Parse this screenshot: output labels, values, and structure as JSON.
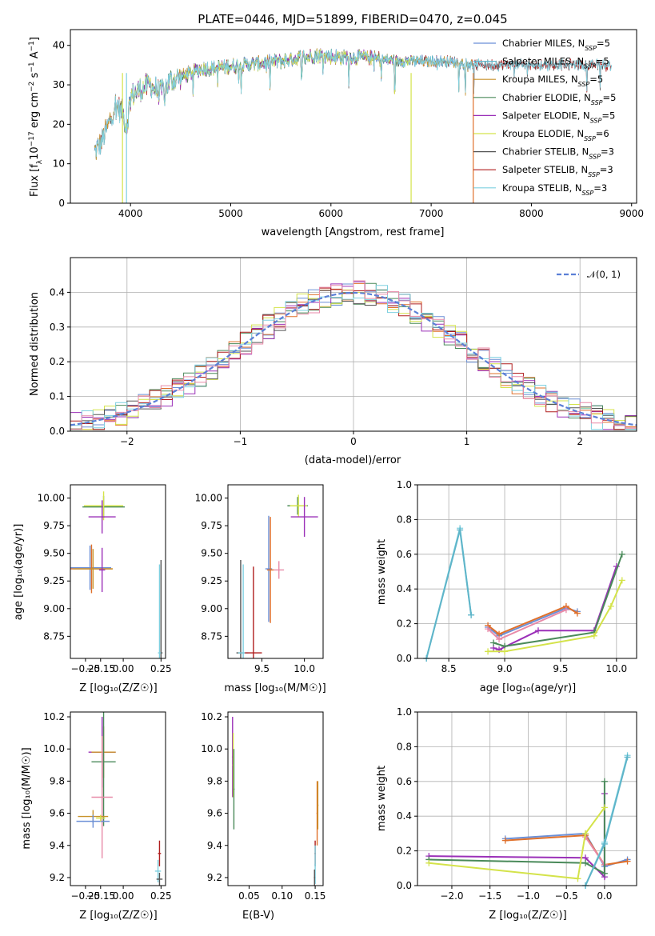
{
  "figure": {
    "title": "PLATE=0446, MJD=51899, FIBERID=0470, z=0.045"
  },
  "chart_data": [
    {
      "id": "spectrum",
      "type": "line",
      "xlabel": "wavelength [Angstrom, rest frame]",
      "ylabel_parts": [
        "Flux [f",
        "λ",
        "10",
        "−17",
        " erg cm",
        "−2",
        " s",
        "−1",
        " A",
        "−1",
        "]"
      ],
      "xlim": [
        3400,
        9050
      ],
      "ylim": [
        0,
        44
      ],
      "xticks": [
        4000,
        5000,
        6000,
        7000,
        8000,
        9000
      ],
      "yticks": [
        0,
        10,
        20,
        30,
        40
      ],
      "grid": false,
      "legend_position": "upper-right",
      "continuum": {
        "x": [
          3640,
          3700,
          3780,
          3850,
          3920,
          3960,
          4000,
          4100,
          4200,
          4300,
          4400,
          4500,
          4700,
          4900,
          5100,
          5300,
          5500,
          5700,
          5900,
          6100,
          6300,
          6500,
          6700,
          6900,
          7100,
          7300,
          7420
        ],
        "y": [
          13,
          15,
          20,
          25,
          23,
          19,
          27,
          29,
          30,
          28,
          31,
          32,
          34,
          34.5,
          35,
          35.5,
          36,
          37,
          37.5,
          37,
          37,
          36.5,
          36,
          36,
          36,
          35.5,
          35
        ]
      },
      "series": [
        {
          "name": "Chabrier MILES",
          "nssp": "5",
          "color": "#6b8fd6",
          "xmin": 3640,
          "xmax": 7420
        },
        {
          "name": "Salpeter MILES",
          "nssp": "5",
          "color": "#5fb5c9",
          "xmin": 3640,
          "xmax": 7420
        },
        {
          "name": "Kroupa MILES",
          "nssp": "5",
          "color": "#c8922a",
          "xmin": 3640,
          "xmax": 7420
        },
        {
          "name": "Chabrier ELODIE",
          "nssp": "5",
          "color": "#4a8a5a",
          "xmin": 3900,
          "xmax": 6800
        },
        {
          "name": "Salpeter ELODIE",
          "nssp": "5",
          "color": "#9b30b8",
          "xmin": 3900,
          "xmax": 6800
        },
        {
          "name": "Kroupa ELODIE",
          "nssp": "6",
          "color": "#d4e34a",
          "xmin": 3900,
          "xmax": 6800
        },
        {
          "name": "Chabrier STELIB",
          "nssp": "3",
          "color": "#555555",
          "xmin": 3640,
          "xmax": 8800
        },
        {
          "name": "Salpeter STELIB",
          "nssp": "3",
          "color": "#b01e1e",
          "xmin": 3640,
          "xmax": 8800
        },
        {
          "name": "Kroupa STELIB",
          "nssp": "3",
          "color": "#7fd0e0",
          "xmin": 3640,
          "xmax": 8800
        }
      ]
    },
    {
      "id": "residuals",
      "type": "line",
      "xlabel": "(data-model)/error",
      "ylabel": "Normed distribution",
      "xlim": [
        -2.5,
        2.5
      ],
      "ylim": [
        0,
        0.5
      ],
      "xticks": [
        -2,
        -1,
        0,
        1,
        2
      ],
      "xtick_labels": [
        "−2",
        "−1",
        "0",
        "1",
        "2"
      ],
      "yticks": [
        0,
        0.1,
        0.2,
        0.3,
        0.4
      ],
      "ytick_labels": [
        "0.0",
        "0.1",
        "0.2",
        "0.3",
        "0.4"
      ],
      "grid": true,
      "legend_position": "upper-right",
      "gaussian_label": "𝒩(0, 1)",
      "gaussian_color": "#5b7fd6",
      "bin_width": 0.1,
      "colors": [
        "#6b8fd6",
        "#e0702a",
        "#4a8a5a",
        "#9b30b8",
        "#d4e34a",
        "#555555",
        "#b01e1e",
        "#7fd0e0",
        "#e88aa8"
      ]
    },
    {
      "id": "age_vs_Z",
      "type": "scatter",
      "xlabel": "Z [log₁₀(Z/Z☉)]",
      "ylabel": "age  [log₁₀(age/yr)]",
      "xlim": [
        -0.35,
        0.28
      ],
      "ylim": [
        8.55,
        10.12
      ],
      "xticks": [
        -0.25,
        -0.15,
        0.0,
        0.25
      ],
      "xtick_labels": [
        "−0.25",
        "−0.15",
        "0.00",
        "0.25"
      ],
      "yticks": [
        8.75,
        9.0,
        9.25,
        9.5,
        9.75,
        10.0
      ],
      "ytick_labels": [
        "8.75",
        "9.00",
        "9.25",
        "9.50",
        "9.75",
        "10.00"
      ],
      "grid": false,
      "points": [
        {
          "x": -0.13,
          "y": 9.92,
          "xerr": 0.14,
          "yerr": 0.1,
          "color": "#4a8a5a"
        },
        {
          "x": -0.13,
          "y": 9.93,
          "xerr": 0.13,
          "yerr": 0.13,
          "color": "#d4e34a"
        },
        {
          "x": -0.14,
          "y": 9.83,
          "xerr": 0.09,
          "yerr": 0.15,
          "color": "#9b30b8"
        },
        {
          "x": -0.22,
          "y": 9.37,
          "xerr": 0.14,
          "yerr": 0.2,
          "color": "#6b8fd6"
        },
        {
          "x": -0.21,
          "y": 9.36,
          "xerr": 0.14,
          "yerr": 0.22,
          "color": "#e0702a"
        },
        {
          "x": -0.2,
          "y": 9.36,
          "xerr": 0.13,
          "yerr": 0.18,
          "color": "#c8922a"
        },
        {
          "x": -0.14,
          "y": 9.35,
          "xerr": 0.02,
          "yerr": 0.2,
          "color": "#9b30b8"
        },
        {
          "x": 0.25,
          "y": 8.6,
          "xerr": 0.01,
          "yerr": 0.84,
          "color": "#555555"
        },
        {
          "x": 0.24,
          "y": 8.6,
          "xerr": 0.01,
          "yerr": 0.8,
          "color": "#7fd0e0"
        }
      ]
    },
    {
      "id": "age_vs_mass",
      "type": "scatter",
      "xlabel": "mass [log₁₀(M/M☉)]",
      "xlim": [
        9.1,
        10.22
      ],
      "ylim": [
        8.55,
        10.12
      ],
      "xticks": [
        9.5,
        10.0
      ],
      "xtick_labels": [
        "9.5",
        "10.0"
      ],
      "yticks": [
        8.75,
        9.0,
        9.25,
        9.5,
        9.75,
        10.0
      ],
      "ytick_labels": [
        "8.75",
        "9.00",
        "9.25",
        "9.50",
        "9.75",
        "10.00"
      ],
      "grid": false,
      "points": [
        {
          "x": 9.92,
          "y": 9.93,
          "xerr": 0.12,
          "yerr": 0.08,
          "color": "#4a8a5a"
        },
        {
          "x": 9.93,
          "y": 9.93,
          "xerr": 0.1,
          "yerr": 0.1,
          "color": "#d4e34a"
        },
        {
          "x": 10.0,
          "y": 9.83,
          "xerr": 0.16,
          "yerr": 0.18,
          "color": "#9b30b8"
        },
        {
          "x": 9.58,
          "y": 9.36,
          "xerr": 0.04,
          "yerr": 0.48,
          "color": "#6b8fd6"
        },
        {
          "x": 9.6,
          "y": 9.35,
          "xerr": 0.04,
          "yerr": 0.48,
          "color": "#e0702a"
        },
        {
          "x": 9.7,
          "y": 9.35,
          "xerr": 0.06,
          "yerr": 0.08,
          "color": "#e88aa8"
        },
        {
          "x": 9.25,
          "y": 8.6,
          "xerr": 0.05,
          "yerr": 0.84,
          "color": "#555555"
        },
        {
          "x": 9.28,
          "y": 8.6,
          "xerr": 0.06,
          "yerr": 0.8,
          "color": "#7fd0e0"
        },
        {
          "x": 9.4,
          "y": 8.6,
          "xerr": 0.1,
          "yerr": 0.78,
          "color": "#b01e1e"
        }
      ]
    },
    {
      "id": "weight_vs_age",
      "type": "line",
      "xlabel": "age  [log₁₀(age/yr)]",
      "ylabel": "mass weight",
      "xlim": [
        8.22,
        10.18
      ],
      "ylim": [
        0,
        1
      ],
      "xticks": [
        8.5,
        9.0,
        9.5,
        10.0
      ],
      "xtick_labels": [
        "8.5",
        "9.0",
        "9.5",
        "10.0"
      ],
      "yticks": [
        0,
        0.2,
        0.4,
        0.6,
        0.8,
        1.0
      ],
      "ytick_labels": [
        "0.0",
        "0.2",
        "0.4",
        "0.6",
        "0.8",
        "1.0"
      ],
      "grid": true,
      "series": [
        {
          "color": "#7fd0e0",
          "x": [
            8.3,
            8.6,
            8.7
          ],
          "y": [
            0.0,
            0.75,
            0.25
          ]
        },
        {
          "color": "#5fb5c9",
          "x": [
            8.3,
            8.6,
            8.7
          ],
          "y": [
            0.0,
            0.74,
            0.25
          ]
        },
        {
          "color": "#6b8fd6",
          "x": [
            8.85,
            8.95,
            9.55,
            9.65
          ],
          "y": [
            0.18,
            0.13,
            0.29,
            0.27
          ]
        },
        {
          "color": "#e0702a",
          "x": [
            8.85,
            8.95,
            9.55,
            9.65
          ],
          "y": [
            0.19,
            0.14,
            0.3,
            0.26
          ]
        },
        {
          "color": "#e88aa8",
          "x": [
            8.85,
            8.95,
            9.55
          ],
          "y": [
            0.17,
            0.11,
            0.28
          ]
        },
        {
          "color": "#9b30b8",
          "x": [
            8.9,
            8.95,
            9.3,
            9.8,
            10.0
          ],
          "y": [
            0.06,
            0.05,
            0.16,
            0.16,
            0.53
          ]
        },
        {
          "color": "#4a8a5a",
          "x": [
            8.9,
            9.0,
            9.8,
            10.05
          ],
          "y": [
            0.09,
            0.07,
            0.15,
            0.6
          ]
        },
        {
          "color": "#d4e34a",
          "x": [
            8.85,
            9.0,
            9.8,
            9.95,
            10.05
          ],
          "y": [
            0.04,
            0.04,
            0.13,
            0.3,
            0.45
          ]
        }
      ]
    },
    {
      "id": "mass_vs_Z",
      "type": "scatter",
      "xlabel": "Z [log₁₀(Z/Z☉)]",
      "ylabel": "mass [log₁₀(M/M☉)]",
      "xlim": [
        -0.35,
        0.28
      ],
      "ylim": [
        9.15,
        10.23
      ],
      "xticks": [
        -0.25,
        -0.15,
        0.0,
        0.25
      ],
      "xtick_labels": [
        "−0.25",
        "−0.15",
        "0.00",
        "0.25"
      ],
      "yticks": [
        9.2,
        9.4,
        9.6,
        9.8,
        10.0,
        10.2
      ],
      "ytick_labels": [
        "9.2",
        "9.4",
        "9.6",
        "9.8",
        "10.0",
        "10.2"
      ],
      "grid": false,
      "points": [
        {
          "x": -0.14,
          "y": 9.98,
          "xerr": 0.09,
          "yerr": 0.22,
          "color": "#9b30b8"
        },
        {
          "x": -0.13,
          "y": 9.98,
          "xerr": 0.08,
          "yerr": 0.16,
          "color": "#c8922a"
        },
        {
          "x": -0.13,
          "y": 9.92,
          "xerr": 0.08,
          "yerr": 0.4,
          "color": "#4a8a5a"
        },
        {
          "x": -0.14,
          "y": 9.7,
          "xerr": 0.07,
          "yerr": 0.38,
          "color": "#e88aa8"
        },
        {
          "x": -0.2,
          "y": 9.58,
          "xerr": 0.1,
          "yerr": 0.04,
          "color": "#c8922a"
        },
        {
          "x": -0.2,
          "y": 9.55,
          "xerr": 0.11,
          "yerr": 0.04,
          "color": "#6b8fd6"
        },
        {
          "x": -0.15,
          "y": 9.57,
          "xerr": 0.03,
          "yerr": 0.02,
          "color": "#d4e34a"
        },
        {
          "x": 0.24,
          "y": 9.35,
          "xerr": 0.01,
          "yerr": 0.08,
          "color": "#b01e1e"
        },
        {
          "x": 0.23,
          "y": 9.24,
          "xerr": 0.02,
          "yerr": 0.07,
          "color": "#7fd0e0"
        },
        {
          "x": 0.24,
          "y": 9.19,
          "xerr": 0.02,
          "yerr": 0.04,
          "color": "#555555"
        }
      ]
    },
    {
      "id": "mass_vs_ebv",
      "type": "scatter",
      "xlabel": "E(B-V)",
      "xlim": [
        0.018,
        0.162
      ],
      "ylim": [
        9.15,
        10.23
      ],
      "xticks": [
        0.05,
        0.1,
        0.15
      ],
      "xtick_labels": [
        "0.05",
        "0.10",
        "0.15"
      ],
      "yticks": [
        9.2,
        9.4,
        9.6,
        9.8,
        10.0,
        10.2
      ],
      "ytick_labels": [
        "9.2",
        "9.4",
        "9.6",
        "9.8",
        "10.0",
        "10.2"
      ],
      "grid": false,
      "points": [
        {
          "x": 0.025,
          "y": 9.95,
          "xerr": 0.001,
          "yerr": 0.25,
          "color": "#9b30b8"
        },
        {
          "x": 0.026,
          "y": 9.9,
          "xerr": 0.001,
          "yerr": 0.2,
          "color": "#d4e34a"
        },
        {
          "x": 0.027,
          "y": 9.75,
          "xerr": 0.001,
          "yerr": 0.25,
          "color": "#4a8a5a"
        },
        {
          "x": 0.153,
          "y": 9.6,
          "xerr": 0.001,
          "yerr": 0.2,
          "color": "#e0702a"
        },
        {
          "x": 0.154,
          "y": 9.65,
          "xerr": 0.001,
          "yerr": 0.15,
          "color": "#c8922a"
        },
        {
          "x": 0.15,
          "y": 9.35,
          "xerr": 0.001,
          "yerr": 0.08,
          "color": "#b01e1e"
        },
        {
          "x": 0.15,
          "y": 9.28,
          "xerr": 0.001,
          "yerr": 0.12,
          "color": "#7fd0e0"
        },
        {
          "x": 0.149,
          "y": 9.2,
          "xerr": 0.001,
          "yerr": 0.05,
          "color": "#555555"
        }
      ]
    },
    {
      "id": "weight_vs_Z",
      "type": "line",
      "xlabel": "Z [log₁₀(Z/Z☉)]",
      "ylabel": "mass weight",
      "xlim": [
        -2.45,
        0.42
      ],
      "ylim": [
        0,
        1
      ],
      "xticks": [
        -2.0,
        -1.5,
        -1.0,
        -0.5,
        0.0
      ],
      "xtick_labels": [
        "−2.0",
        "−1.5",
        "−1.0",
        "−0.5",
        "0.0"
      ],
      "yticks": [
        0,
        0.2,
        0.4,
        0.6,
        0.8,
        1.0
      ],
      "ytick_labels": [
        "0.0",
        "0.2",
        "0.4",
        "0.6",
        "0.8",
        "1.0"
      ],
      "grid": true,
      "series": [
        {
          "color": "#6b8fd6",
          "x": [
            -1.3,
            -0.25,
            0.0,
            0.3
          ],
          "y": [
            0.27,
            0.3,
            0.11,
            0.15
          ]
        },
        {
          "color": "#e0702a",
          "x": [
            -1.3,
            -0.25,
            0.0,
            0.3
          ],
          "y": [
            0.26,
            0.29,
            0.12,
            0.14
          ]
        },
        {
          "color": "#e88aa8",
          "x": [
            -0.25,
            0.0
          ],
          "y": [
            0.28,
            0.12
          ]
        },
        {
          "color": "#9b30b8",
          "x": [
            -2.3,
            -0.25,
            0.0,
            0.0
          ],
          "y": [
            0.17,
            0.16,
            0.05,
            0.53
          ]
        },
        {
          "color": "#4a8a5a",
          "x": [
            -2.3,
            -0.25,
            0.0,
            0.0
          ],
          "y": [
            0.15,
            0.13,
            0.07,
            0.6
          ]
        },
        {
          "color": "#d4e34a",
          "x": [
            -2.3,
            -0.35,
            -0.25,
            0.0
          ],
          "y": [
            0.13,
            0.04,
            0.3,
            0.45
          ]
        },
        {
          "color": "#7fd0e0",
          "x": [
            -0.25,
            0.0,
            0.3
          ],
          "y": [
            0.0,
            0.25,
            0.75
          ]
        },
        {
          "color": "#5fb5c9",
          "x": [
            -0.25,
            0.0,
            0.3
          ],
          "y": [
            0.0,
            0.24,
            0.74
          ]
        }
      ]
    }
  ]
}
